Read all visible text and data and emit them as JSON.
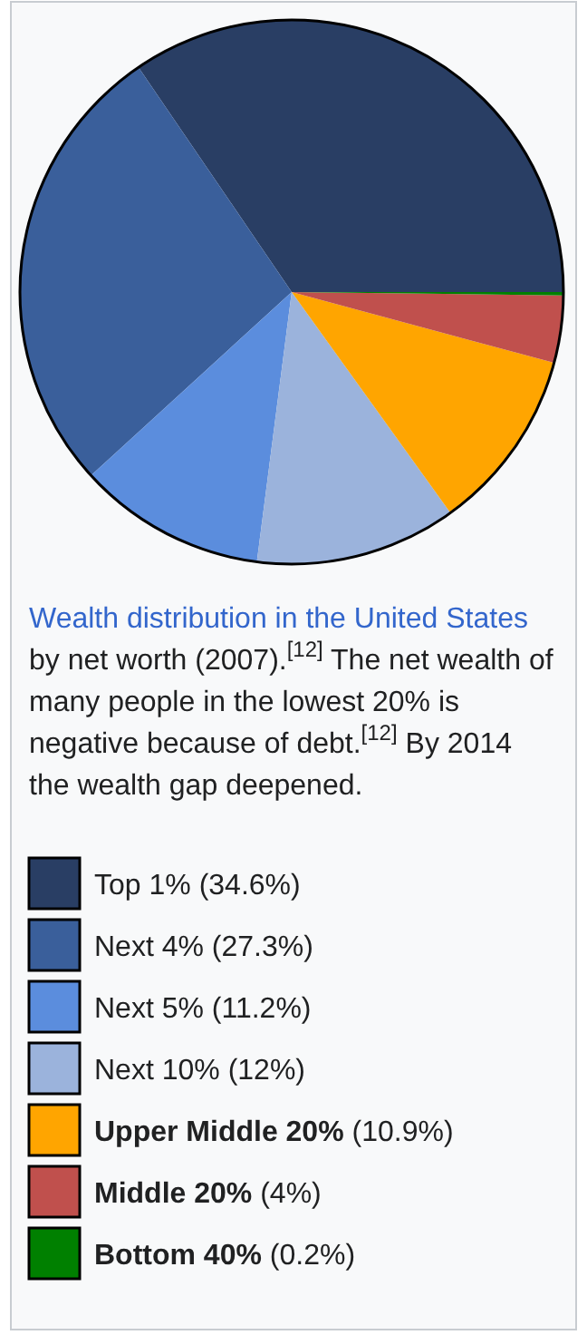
{
  "chart_data": {
    "type": "pie",
    "categories": [
      "Top 1%",
      "Next 4%",
      "Next 5%",
      "Next 10%",
      "Upper Middle 20%",
      "Middle 20%",
      "Bottom 40%"
    ],
    "values": [
      34.6,
      27.3,
      11.2,
      12,
      10.9,
      4,
      0.2
    ],
    "value_labels": [
      "(34.6%)",
      "(27.3%)",
      "(11.2%)",
      "(12%)",
      "(10.9%)",
      "(4%)",
      "(0.2%)"
    ],
    "colors": [
      "#293e64",
      "#3a5f9b",
      "#5b8ddd",
      "#9bb3dc",
      "#ffa500",
      "#c0504d",
      "#008000"
    ],
    "legend": "bottom",
    "annotations": [
      "Wealth distribution in the United States",
      "by net worth (2007).$^{[12]}$ The net wealth of many people in the lowest 20% is negative because of debt.$^{[12]}$ By 2014 the wealth gap deepened."
    ]
  }
}
